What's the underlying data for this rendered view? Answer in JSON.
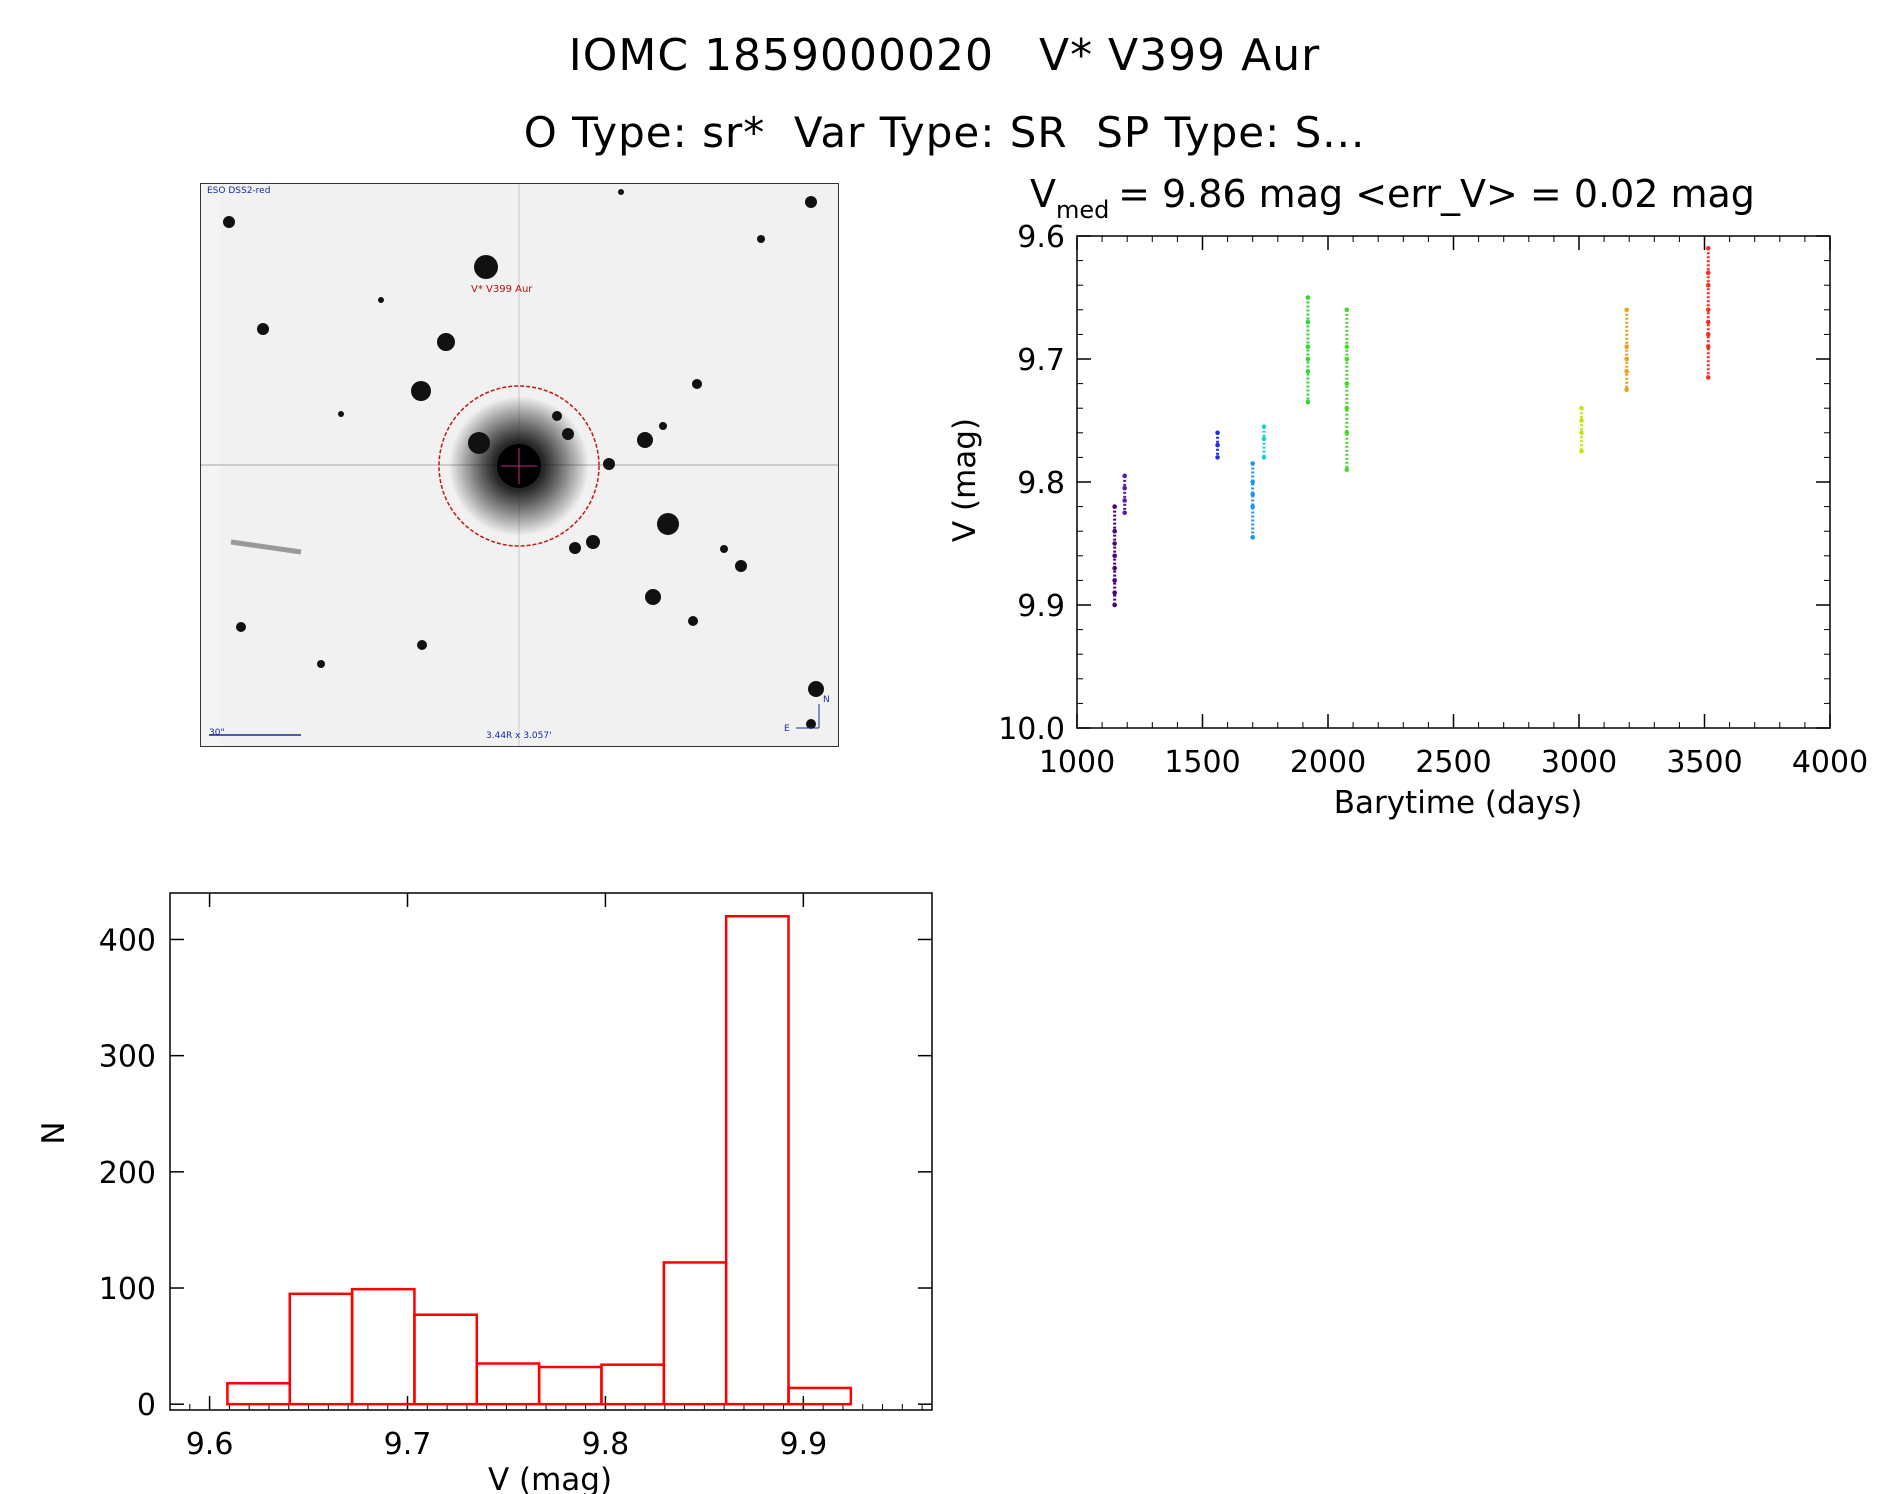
{
  "header": {
    "title_line1": "IOMC 1859000020   V* V399 Aur",
    "title_line2": "O Type: sr*  Var Type: SR  SP Type: S..."
  },
  "dss_image": {
    "caption_top_left": "ESO DSS2-red",
    "target_label": "V* V399 Aur",
    "scale_label": "30\"",
    "coord_label": "3.44R x 3.057'",
    "north_label": "N",
    "east_label": "E"
  },
  "chart_data": [
    {
      "type": "scatter",
      "title_main": "V",
      "title_sub": "med",
      "title_rest": " = 9.86 mag <err_V> = 0.02 mag",
      "xlabel": "Barytime (days)",
      "ylabel": "V (mag)",
      "xlim": [
        1000,
        4000
      ],
      "ylim": [
        10.0,
        9.6
      ],
      "xticks": [
        "1000",
        "1500",
        "2000",
        "2500",
        "3000",
        "3500",
        "4000"
      ],
      "yticks": [
        "9.6",
        "9.7",
        "9.8",
        "9.9",
        "10.0"
      ],
      "series": [
        {
          "color": "#4b0082",
          "points": [
            [
              1150,
              9.82
            ],
            [
              1150,
              9.84
            ],
            [
              1150,
              9.85
            ],
            [
              1150,
              9.86
            ],
            [
              1150,
              9.87
            ],
            [
              1150,
              9.88
            ],
            [
              1150,
              9.89
            ],
            [
              1150,
              9.9
            ]
          ]
        },
        {
          "color": "#5a1fa0",
          "points": [
            [
              1190,
              9.795
            ],
            [
              1190,
              9.805
            ],
            [
              1190,
              9.815
            ],
            [
              1190,
              9.825
            ]
          ]
        },
        {
          "color": "#2030e0",
          "points": [
            [
              1560,
              9.76
            ],
            [
              1560,
              9.77
            ],
            [
              1560,
              9.78
            ]
          ]
        },
        {
          "color": "#1e90ff",
          "points": [
            [
              1700,
              9.785
            ],
            [
              1700,
              9.8
            ],
            [
              1700,
              9.81
            ],
            [
              1700,
              9.82
            ],
            [
              1700,
              9.845
            ]
          ]
        },
        {
          "color": "#1fd2c8",
          "points": [
            [
              1745,
              9.755
            ],
            [
              1745,
              9.765
            ],
            [
              1745,
              9.78
            ]
          ]
        },
        {
          "color": "#30d830",
          "points": [
            [
              1920,
              9.65
            ],
            [
              1920,
              9.67
            ],
            [
              1920,
              9.69
            ],
            [
              1920,
              9.7
            ],
            [
              1920,
              9.71
            ],
            [
              1920,
              9.735
            ]
          ]
        },
        {
          "color": "#40e020",
          "points": [
            [
              2075,
              9.66
            ],
            [
              2075,
              9.69
            ],
            [
              2075,
              9.7
            ],
            [
              2075,
              9.72
            ],
            [
              2075,
              9.74
            ],
            [
              2075,
              9.76
            ],
            [
              2075,
              9.79
            ]
          ]
        },
        {
          "color": "#c8e010",
          "points": [
            [
              3010,
              9.74
            ],
            [
              3010,
              9.75
            ],
            [
              3010,
              9.76
            ],
            [
              3010,
              9.775
            ]
          ]
        },
        {
          "color": "#f0a010",
          "points": [
            [
              3190,
              9.66
            ],
            [
              3190,
              9.69
            ],
            [
              3190,
              9.7
            ],
            [
              3190,
              9.71
            ],
            [
              3190,
              9.725
            ]
          ]
        },
        {
          "color": "#f03020",
          "points": [
            [
              3515,
              9.61
            ],
            [
              3515,
              9.63
            ],
            [
              3515,
              9.64
            ],
            [
              3515,
              9.66
            ],
            [
              3515,
              9.67
            ],
            [
              3515,
              9.68
            ],
            [
              3515,
              9.69
            ],
            [
              3515,
              9.715
            ]
          ]
        }
      ],
      "grid": false
    },
    {
      "type": "bar",
      "subtype": "histogram",
      "xlabel": "V (mag)",
      "ylabel": "N",
      "xlim": [
        9.58,
        9.965
      ],
      "ylim": [
        -5,
        440
      ],
      "xticks": [
        "9.6",
        "9.7",
        "9.8",
        "9.9"
      ],
      "yticks": [
        "0",
        "100",
        "200",
        "300",
        "400"
      ],
      "bin_width": 0.0315,
      "bin_starts": [
        9.609,
        9.6405,
        9.672,
        9.7035,
        9.735,
        9.7665,
        9.798,
        9.8295,
        9.861,
        9.8925
      ],
      "values": [
        18,
        95,
        99,
        77,
        35,
        32,
        34,
        122,
        420,
        14
      ],
      "bar_color": "#ff0000",
      "grid": false
    }
  ]
}
